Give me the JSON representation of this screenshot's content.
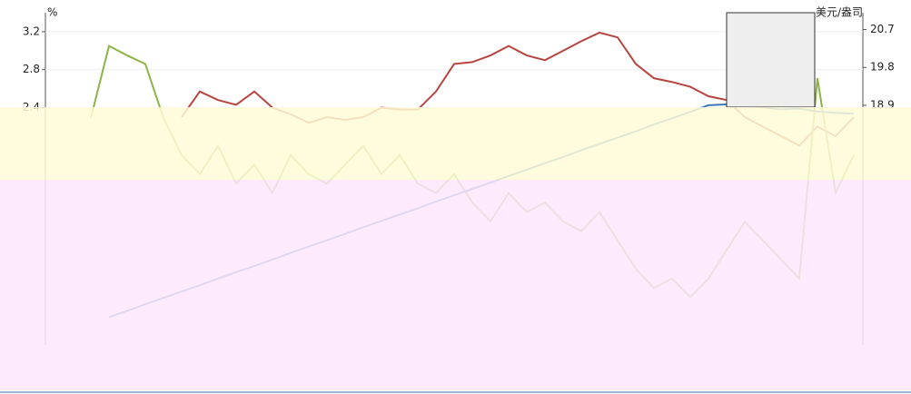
{
  "chart_data": {
    "type": "line",
    "y_label": "%",
    "y2_label": "美元/盎司",
    "categories": [
      null,
      null,
      null,
      null,
      null,
      null,
      null,
      null,
      null,
      null,
      null,
      null,
      null,
      null,
      null,
      null,
      null,
      null,
      null,
      null,
      null,
      null,
      null,
      null,
      null,
      null,
      null,
      null,
      null,
      null,
      null,
      null,
      null,
      null,
      null,
      null,
      null,
      null,
      null,
      null,
      null,
      null,
      null,
      null,
      null
    ],
    "ylim": [
      -0.1,
      3.4
    ],
    "yticks": [
      2.4,
      2.8,
      3.2
    ],
    "y2lim": [
      13.2,
      21.1
    ],
    "y2ticks": [
      18.9,
      19.8,
      20.7
    ],
    "grid": true,
    "series": [
      {
        "color": "#b5453e",
        "values": [
          null,
          null,
          null,
          null,
          null,
          null,
          null,
          2.3,
          2.57,
          2.48,
          2.43,
          2.57,
          2.4,
          2.33,
          2.24,
          2.3,
          2.27,
          2.3,
          2.4,
          2.38,
          2.38,
          2.57,
          2.86,
          2.88,
          2.95,
          3.05,
          2.95,
          2.9,
          3.0,
          3.1,
          3.19,
          3.14,
          2.86,
          2.71,
          2.67,
          2.62,
          2.52,
          2.48,
          2.3,
          2.2,
          2.1,
          2.0,
          2.2,
          2.1,
          2.3
        ]
      },
      {
        "color": "#8db347",
        "values": [
          null,
          null,
          2.29,
          3.05,
          2.95,
          2.86,
          2.29,
          1.9,
          1.7,
          2.0,
          1.6,
          1.8,
          1.5,
          1.9,
          1.7,
          1.6,
          1.8,
          2.0,
          1.7,
          1.9,
          1.6,
          1.5,
          1.7,
          1.4,
          1.2,
          1.5,
          1.3,
          1.4,
          1.2,
          1.1,
          1.3,
          1.0,
          0.7,
          0.5,
          0.6,
          0.4,
          0.6,
          0.9,
          1.2,
          1.0,
          0.8,
          0.6,
          2.71,
          1.5,
          1.9
        ]
      },
      {
        "color": "#3f78b5",
        "axis": "y2",
        "values": [
          null,
          null,
          null,
          13.86,
          14.01,
          14.17,
          14.32,
          14.47,
          14.62,
          14.78,
          14.93,
          15.08,
          15.23,
          15.39,
          15.54,
          15.69,
          15.84,
          16.0,
          16.15,
          16.3,
          16.45,
          16.61,
          16.76,
          16.91,
          17.06,
          17.22,
          17.37,
          17.52,
          17.67,
          17.83,
          17.98,
          18.13,
          18.28,
          18.44,
          18.59,
          18.74,
          18.9,
          18.92,
          18.88,
          18.85,
          18.8,
          18.82,
          18.75,
          18.72,
          18.7
        ]
      }
    ]
  }
}
